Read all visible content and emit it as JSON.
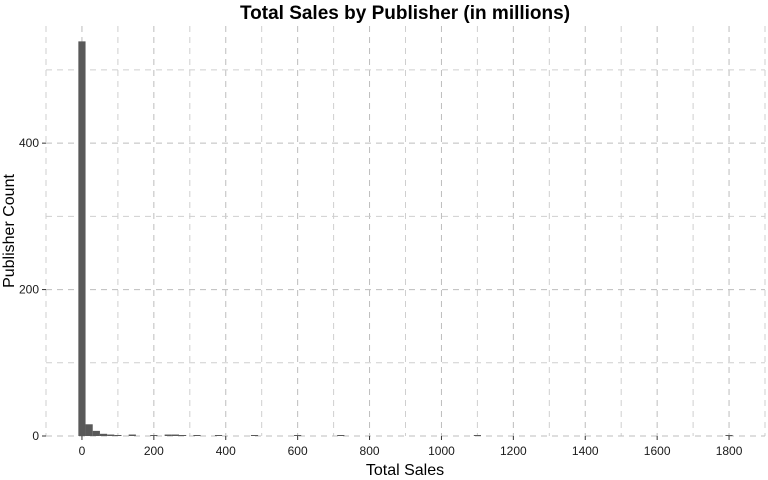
{
  "chart_data": {
    "type": "bar",
    "title": "Total Sales by Publisher (in millions)",
    "xlabel": "Total Sales",
    "ylabel": "Publisher Count",
    "xlim": [
      -100,
      1900
    ],
    "ylim": [
      0,
      560
    ],
    "x_ticks": [
      0,
      200,
      400,
      600,
      800,
      1000,
      1200,
      1400,
      1600,
      1800
    ],
    "y_ticks": [
      0,
      200,
      400
    ],
    "x_minor_ticks": [
      -100,
      100,
      300,
      500,
      700,
      900,
      1100,
      1300,
      1500,
      1700,
      1900
    ],
    "y_minor_ticks": [
      100,
      300,
      500
    ],
    "grid": true,
    "bin_width": 20,
    "bins": [
      {
        "x": 0,
        "count": 539
      },
      {
        "x": 20,
        "count": 16
      },
      {
        "x": 40,
        "count": 7
      },
      {
        "x": 60,
        "count": 3
      },
      {
        "x": 80,
        "count": 2
      },
      {
        "x": 100,
        "count": 1
      },
      {
        "x": 140,
        "count": 2
      },
      {
        "x": 200,
        "count": 1
      },
      {
        "x": 240,
        "count": 2
      },
      {
        "x": 260,
        "count": 2
      },
      {
        "x": 280,
        "count": 1
      },
      {
        "x": 320,
        "count": 1
      },
      {
        "x": 380,
        "count": 1
      },
      {
        "x": 480,
        "count": 1
      },
      {
        "x": 600,
        "count": 1
      },
      {
        "x": 720,
        "count": 1
      },
      {
        "x": 1100,
        "count": 1
      },
      {
        "x": 1800,
        "count": 1
      }
    ]
  }
}
